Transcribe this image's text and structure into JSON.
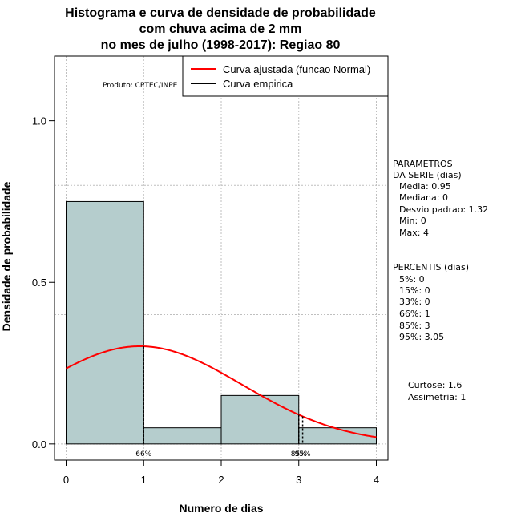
{
  "chart_data": {
    "type": "bar",
    "title_lines": [
      "Histograma e curva de densidade de probabilidade",
      "com chuva acima de 2 mm",
      "no mes de julho (1998-2017): Regiao 80"
    ],
    "xlabel": "Numero de dias",
    "ylabel": "Densidade de probabilidade",
    "xlim": [
      -0.15,
      4.15
    ],
    "ylim": [
      -0.05,
      1.2
    ],
    "x_ticks": [
      "0",
      "1",
      "2",
      "3",
      "4"
    ],
    "y_ticks": [
      "0.0",
      "0.5",
      "1.0"
    ],
    "y_tick_values": [
      0.0,
      0.5,
      1.0
    ],
    "x_tick_values": [
      0,
      1,
      2,
      3,
      4
    ],
    "bins": [
      {
        "x0": 0,
        "x1": 1,
        "density": 0.75
      },
      {
        "x0": 1,
        "x1": 2,
        "density": 0.05
      },
      {
        "x0": 2,
        "x1": 3,
        "density": 0.15
      },
      {
        "x0": 3,
        "x1": 4,
        "density": 0.05
      }
    ],
    "bar_color": "#b5cdcd",
    "normal_fit": {
      "mean": 0.95,
      "sd": 1.32,
      "color": "#ff0000"
    },
    "percentile_markers": [
      {
        "x": 1.0,
        "label": "66%"
      },
      {
        "x": 3.0,
        "label": "85%"
      },
      {
        "x": 3.05,
        "label": "95%"
      }
    ],
    "legend": [
      {
        "label": "Curva ajustada (funcao Normal)",
        "color": "#ff0000"
      },
      {
        "label": "Curva empirica",
        "color": "#000000"
      }
    ],
    "product_label": "Produto: CPTEC/INPE",
    "parametros": {
      "header": [
        "PARAMETROS",
        "DA SERIE (dias)"
      ],
      "items": [
        "Media: 0.95",
        "Mediana: 0",
        "Desvio padrao: 1.32",
        "Min: 0",
        "Max: 4"
      ]
    },
    "percentis": {
      "header": "PERCENTIS (dias)",
      "items": [
        "5%: 0",
        "15%: 0",
        "33%: 0",
        "66%: 1",
        "85%: 3",
        "95%: 3.05"
      ]
    },
    "shape_stats": [
      "Curtose: 1.6",
      "Assimetria: 1"
    ]
  }
}
